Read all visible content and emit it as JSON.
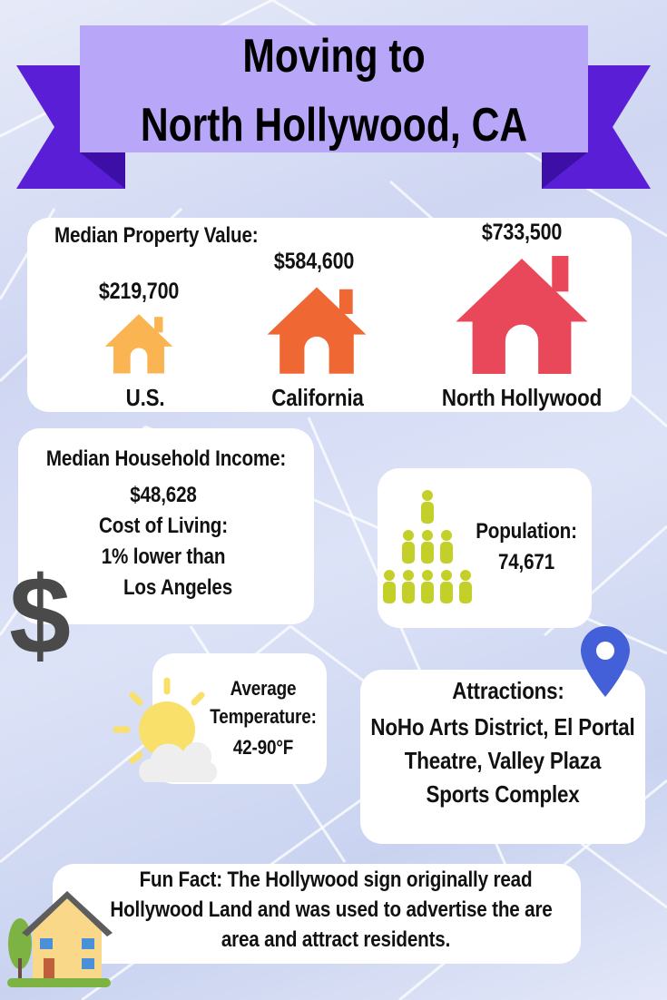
{
  "title": {
    "line1": "Moving to",
    "line2": "North Hollywood, CA"
  },
  "property": {
    "heading": "Median Property Value:",
    "items": [
      {
        "value": "$219,700",
        "label": "U.S.",
        "color": "#fbb452",
        "icon": "house-icon"
      },
      {
        "value": "$584,600",
        "label": "California",
        "color": "#ef6733",
        "icon": "house-icon"
      },
      {
        "value": "$733,500",
        "label": "North Hollywood",
        "color": "#e9485a",
        "icon": "house-icon"
      }
    ]
  },
  "income": {
    "heading": "Median Household Income:",
    "value": "$48,628",
    "cost_heading": "Cost of Living:",
    "cost_line1": "1% lower than",
    "cost_line2": "Los Angeles",
    "icon": "dollar-sign-icon"
  },
  "population": {
    "heading": "Population:",
    "value": "74,671",
    "icon": "people-icon"
  },
  "temperature": {
    "line1": "Average",
    "line2": "Temperature:",
    "value": "42-90°F",
    "icon": "sun-cloud-icon"
  },
  "attractions": {
    "heading": "Attractions:",
    "line1": "NoHo Arts District, El Portal",
    "line2": "Theatre, Valley Plaza",
    "line3": "Sports Complex",
    "icon": "map-pin-icon"
  },
  "fun_fact": {
    "line1": "Fun Fact:  The Hollywood sign originally read",
    "line2": "Hollywood Land and was used to advertise the are",
    "line3": "area and attract residents.",
    "icon": "home-building-icon"
  },
  "colors": {
    "banner": "#b8a6f8",
    "ribbon": "#5a1ed6",
    "ribbon_dark": "#3d0fa6",
    "person": "#c4d02a",
    "pin": "#4460d8"
  }
}
